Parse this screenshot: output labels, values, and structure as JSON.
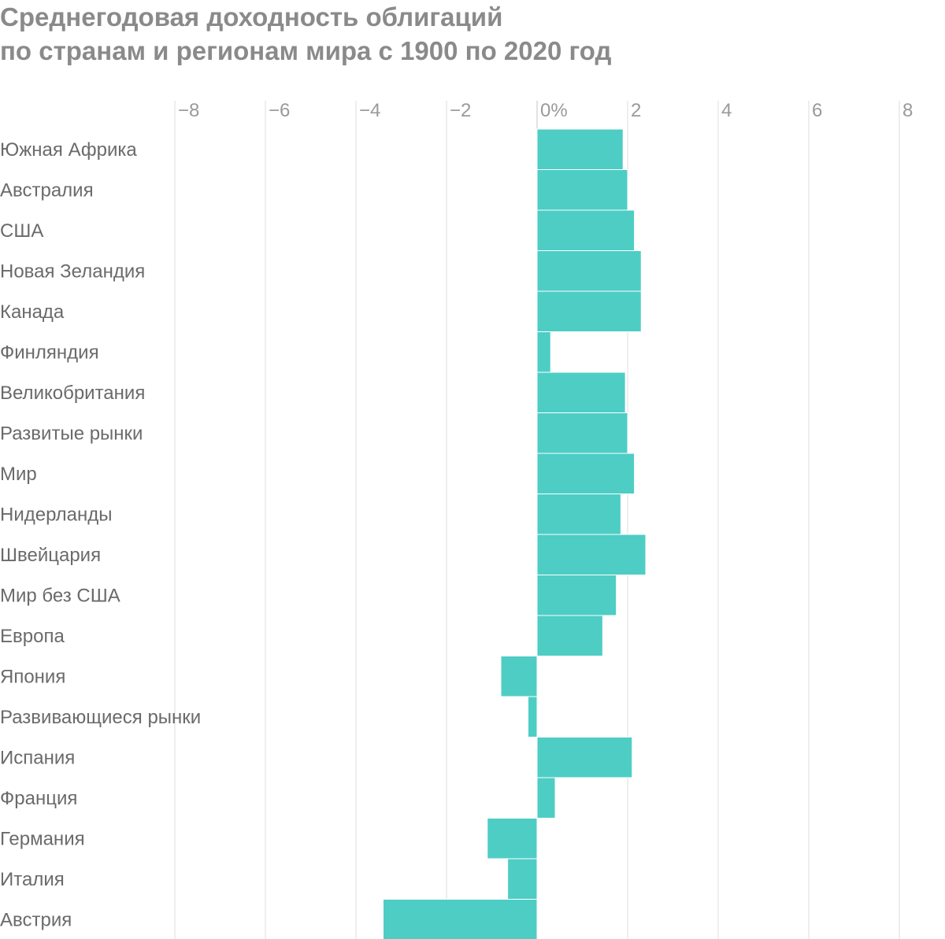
{
  "chart_data": {
    "type": "bar",
    "orientation": "horizontal",
    "title": "Среднегодовая доходность облигаций по странам и регионам мира с 1900 по 2020 год",
    "title_lines": [
      "Среднегодовая доходность облигаций",
      "по странам и регионам мира с 1900 по 2020 год"
    ],
    "xlim": [
      -8,
      8
    ],
    "ticks": [
      {
        "value": -8,
        "label": "−8"
      },
      {
        "value": -6,
        "label": "−6"
      },
      {
        "value": -4,
        "label": "−4"
      },
      {
        "value": -2,
        "label": "−2"
      },
      {
        "value": 0,
        "label": "0%"
      },
      {
        "value": 2,
        "label": "2"
      },
      {
        "value": 4,
        "label": "4"
      },
      {
        "value": 6,
        "label": "6"
      },
      {
        "value": 8,
        "label": "8"
      }
    ],
    "grid": true,
    "bar_color": "#4ecdc4",
    "categories": [
      "Южная Африка",
      "Австралия",
      "США",
      "Новая Зеландия",
      "Канада",
      "Финляндия",
      "Великобритания",
      "Развитые рынки",
      "Мир",
      "Нидерланды",
      "Швейцария",
      "Мир без США",
      "Европа",
      "Япония",
      "Развивающиеся рынки",
      "Испания",
      "Франция",
      "Германия",
      "Италия",
      "Австрия"
    ],
    "values": [
      1.9,
      2.0,
      2.15,
      2.3,
      2.3,
      0.3,
      1.95,
      2.0,
      2.15,
      1.85,
      2.4,
      1.75,
      1.45,
      -0.8,
      -0.2,
      2.1,
      0.4,
      -1.1,
      -0.65,
      -3.4
    ]
  }
}
